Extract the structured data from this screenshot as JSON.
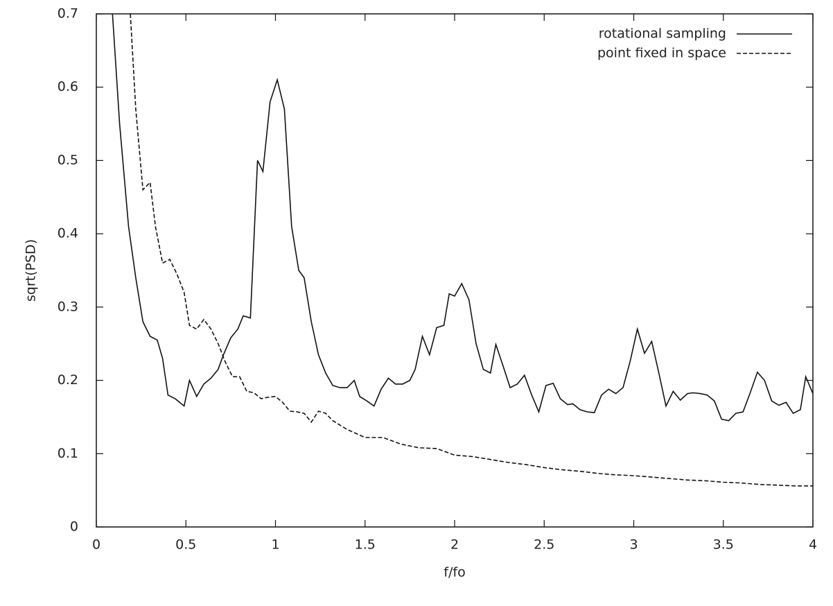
{
  "chart_data": {
    "type": "line",
    "xlabel": "f/fo",
    "ylabel": "sqrt(PSD)",
    "xlim": [
      0,
      4
    ],
    "xticks": [
      0,
      0.5,
      1,
      1.5,
      2,
      2.5,
      3,
      3.5,
      4
    ],
    "ylim": [
      0,
      0.7
    ],
    "yticks": [
      0,
      0.1,
      0.2,
      0.3,
      0.4,
      0.5,
      0.6,
      0.7
    ],
    "legend": "top-right",
    "series": [
      {
        "name": "rotational sampling",
        "color": "#111111",
        "dash": "solid",
        "x": [
          0.09,
          0.13,
          0.18,
          0.22,
          0.26,
          0.3,
          0.34,
          0.37,
          0.4,
          0.44,
          0.49,
          0.52,
          0.56,
          0.6,
          0.64,
          0.68,
          0.71,
          0.75,
          0.79,
          0.82,
          0.86,
          0.9,
          0.93,
          0.97,
          1.01,
          1.05,
          1.09,
          1.13,
          1.16,
          1.2,
          1.24,
          1.28,
          1.32,
          1.36,
          1.4,
          1.44,
          1.47,
          1.51,
          1.55,
          1.59,
          1.63,
          1.67,
          1.71,
          1.75,
          1.78,
          1.82,
          1.86,
          1.9,
          1.94,
          1.97,
          2.0,
          2.04,
          2.08,
          2.12,
          2.16,
          2.2,
          2.23,
          2.27,
          2.31,
          2.35,
          2.39,
          2.43,
          2.47,
          2.51,
          2.55,
          2.59,
          2.63,
          2.66,
          2.7,
          2.74,
          2.78,
          2.82,
          2.86,
          2.9,
          2.94,
          2.98,
          3.02,
          3.06,
          3.1,
          3.14,
          3.18,
          3.22,
          3.26,
          3.3,
          3.33,
          3.37,
          3.41,
          3.45,
          3.49,
          3.53,
          3.57,
          3.61,
          3.65,
          3.69,
          3.73,
          3.77,
          3.81,
          3.85,
          3.89,
          3.93,
          3.96,
          4.0
        ],
        "values": [
          0.7,
          0.55,
          0.41,
          0.34,
          0.28,
          0.26,
          0.255,
          0.23,
          0.18,
          0.175,
          0.165,
          0.2,
          0.178,
          0.195,
          0.203,
          0.215,
          0.235,
          0.258,
          0.27,
          0.288,
          0.285,
          0.5,
          0.485,
          0.58,
          0.61,
          0.57,
          0.41,
          0.35,
          0.34,
          0.28,
          0.235,
          0.21,
          0.193,
          0.19,
          0.19,
          0.2,
          0.178,
          0.172,
          0.165,
          0.188,
          0.203,
          0.195,
          0.195,
          0.2,
          0.215,
          0.26,
          0.235,
          0.272,
          0.275,
          0.318,
          0.315,
          0.332,
          0.31,
          0.25,
          0.215,
          0.21,
          0.249,
          0.22,
          0.19,
          0.195,
          0.207,
          0.18,
          0.157,
          0.193,
          0.196,
          0.175,
          0.167,
          0.168,
          0.16,
          0.157,
          0.156,
          0.18,
          0.188,
          0.182,
          0.19,
          0.226,
          0.27,
          0.237,
          0.253,
          0.21,
          0.165,
          0.185,
          0.173,
          0.182,
          0.183,
          0.182,
          0.18,
          0.172,
          0.147,
          0.145,
          0.155,
          0.157,
          0.183,
          0.211,
          0.2,
          0.172,
          0.166,
          0.17,
          0.155,
          0.16,
          0.205,
          0.182
        ]
      },
      {
        "name": "point fixed in space",
        "color": "#111111",
        "dash": "dashed",
        "x": [
          0.19,
          0.22,
          0.26,
          0.3,
          0.33,
          0.37,
          0.41,
          0.45,
          0.49,
          0.52,
          0.56,
          0.6,
          0.64,
          0.68,
          0.72,
          0.76,
          0.8,
          0.84,
          0.88,
          0.92,
          0.96,
          1.0,
          1.04,
          1.08,
          1.12,
          1.16,
          1.2,
          1.24,
          1.28,
          1.32,
          1.4,
          1.5,
          1.6,
          1.7,
          1.8,
          1.9,
          2.0,
          2.1,
          2.2,
          2.3,
          2.4,
          2.5,
          2.6,
          2.7,
          2.8,
          2.9,
          3.0,
          3.1,
          3.2,
          3.3,
          3.4,
          3.5,
          3.6,
          3.7,
          3.8,
          3.9,
          4.0
        ],
        "values": [
          0.7,
          0.57,
          0.46,
          0.47,
          0.41,
          0.36,
          0.365,
          0.345,
          0.32,
          0.275,
          0.27,
          0.283,
          0.27,
          0.25,
          0.225,
          0.205,
          0.205,
          0.185,
          0.183,
          0.175,
          0.177,
          0.178,
          0.17,
          0.158,
          0.157,
          0.155,
          0.143,
          0.158,
          0.155,
          0.145,
          0.133,
          0.122,
          0.122,
          0.113,
          0.108,
          0.107,
          0.098,
          0.096,
          0.092,
          0.088,
          0.085,
          0.081,
          0.078,
          0.076,
          0.073,
          0.071,
          0.07,
          0.068,
          0.066,
          0.064,
          0.063,
          0.061,
          0.06,
          0.058,
          0.057,
          0.056,
          0.056
        ]
      }
    ]
  }
}
